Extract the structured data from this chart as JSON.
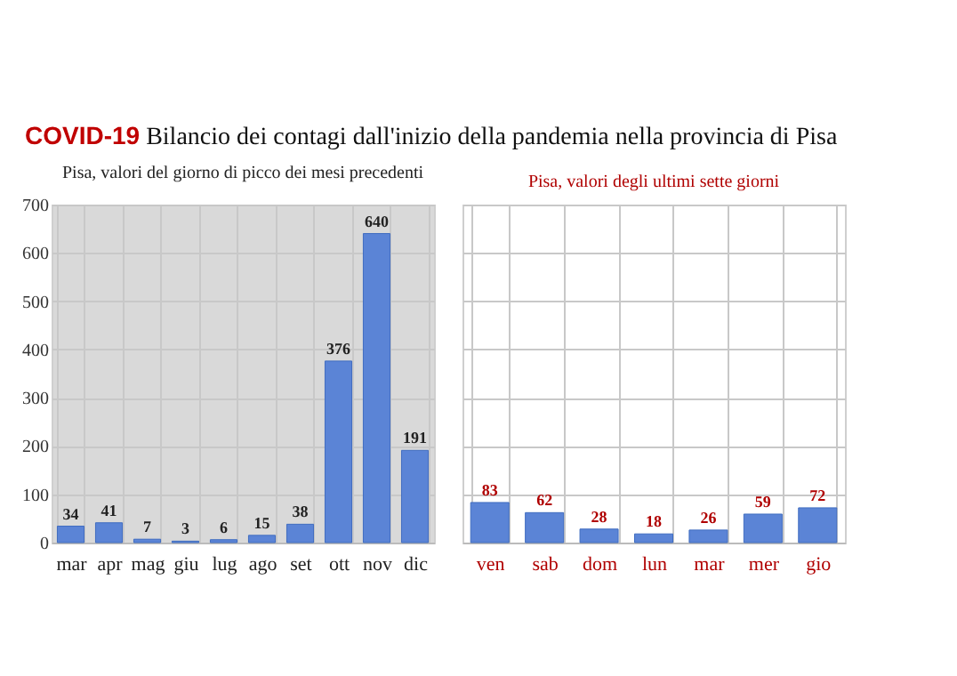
{
  "chart_data": [
    {
      "type": "bar",
      "title": "COVID-19 Bilancio dei contagi dall'inizio della pandemia nella provincia di Pisa",
      "subtitle": "Pisa, valori del giorno di picco dei mesi precedenti",
      "categories": [
        "mar",
        "apr",
        "mag",
        "giu",
        "lug",
        "ago",
        "set",
        "ott",
        "nov",
        "dic"
      ],
      "values": [
        34,
        41,
        7,
        3,
        6,
        15,
        38,
        376,
        640,
        191
      ],
      "color": "#5b84d6",
      "ylim": [
        0,
        700
      ],
      "yticks": [
        0,
        100,
        200,
        300,
        400,
        500,
        600,
        700
      ],
      "grid": true,
      "data_labels": true
    },
    {
      "type": "bar",
      "subtitle": "Pisa, valori degli ultimi sette giorni",
      "categories": [
        "ven",
        "sab",
        "dom",
        "lun",
        "mar",
        "mer",
        "gio"
      ],
      "values": [
        83,
        62,
        28,
        18,
        26,
        59,
        72
      ],
      "color": "#5b84d6",
      "ylim": [
        0,
        700
      ],
      "yticks": [
        {
          "value": 0,
          "label": null
        },
        {
          "value": 100,
          "label": null
        },
        {
          "value": 200,
          "label": null
        },
        {
          "value": 300,
          "label": null
        },
        {
          "value": 400,
          "label": null
        },
        {
          "value": 500,
          "label": null
        },
        {
          "value": 600,
          "label": null
        },
        {
          "value": 700,
          "label": null
        }
      ],
      "tick_labels": "x",
      "grid": true,
      "data_labels": true
    }
  ]
}
